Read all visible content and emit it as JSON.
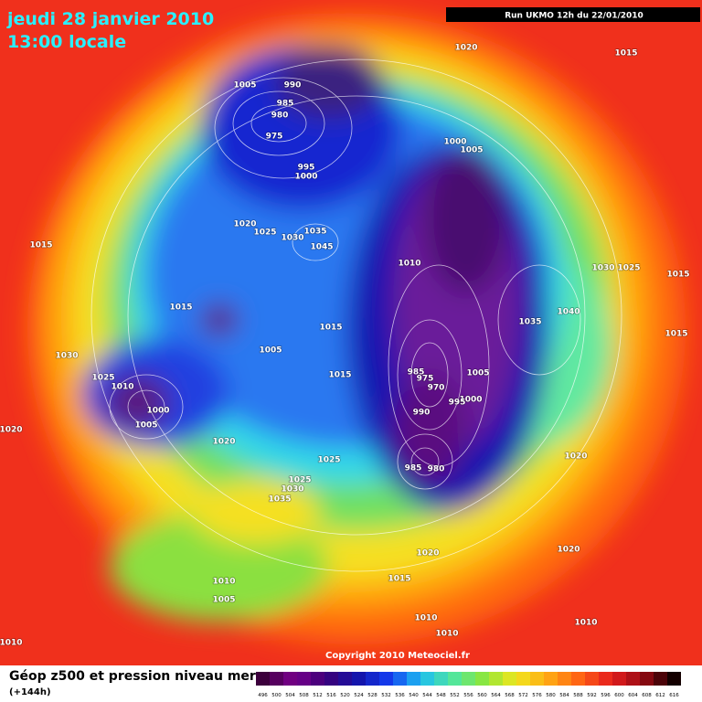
{
  "header": {
    "title": "jeudi 28 janvier 2010",
    "subtitle": "13:00 locale",
    "run": "Run UKMO 12h du 22/01/2010"
  },
  "footer": {
    "copyright": "Copyright 2010 Meteociel.fr"
  },
  "legend": {
    "title": "Géop z500 et pression niveau mer",
    "subtitle": "(+144h)",
    "scale": [
      496,
      500,
      504,
      508,
      512,
      516,
      520,
      524,
      528,
      532,
      536,
      540,
      544,
      548,
      552,
      556,
      560,
      564,
      568,
      572,
      576,
      580,
      584,
      588,
      592,
      596,
      600,
      604,
      608,
      612,
      616
    ]
  },
  "map": {
    "pressure_labels": [
      "1020",
      "1015",
      "1005",
      "990",
      "985",
      "980",
      "975",
      "1000",
      "1005",
      "995",
      "1000",
      "1020",
      "1025",
      "1035",
      "1030",
      "1045",
      "1015",
      "1010",
      "1030",
      "1025",
      "1015",
      "1015",
      "1040",
      "1035",
      "1015",
      "1015",
      "1005",
      "1030",
      "985",
      "975",
      "970",
      "1005",
      "1015",
      "1025",
      "1010",
      "1000",
      "1000",
      "990",
      "995",
      "1005",
      "1020",
      "1020",
      "1020",
      "1025",
      "985",
      "980",
      "1025",
      "1030",
      "1035",
      "1020",
      "1020",
      "1015",
      "1010",
      "1005",
      "1010",
      "1010",
      "1010",
      "1010"
    ]
  }
}
